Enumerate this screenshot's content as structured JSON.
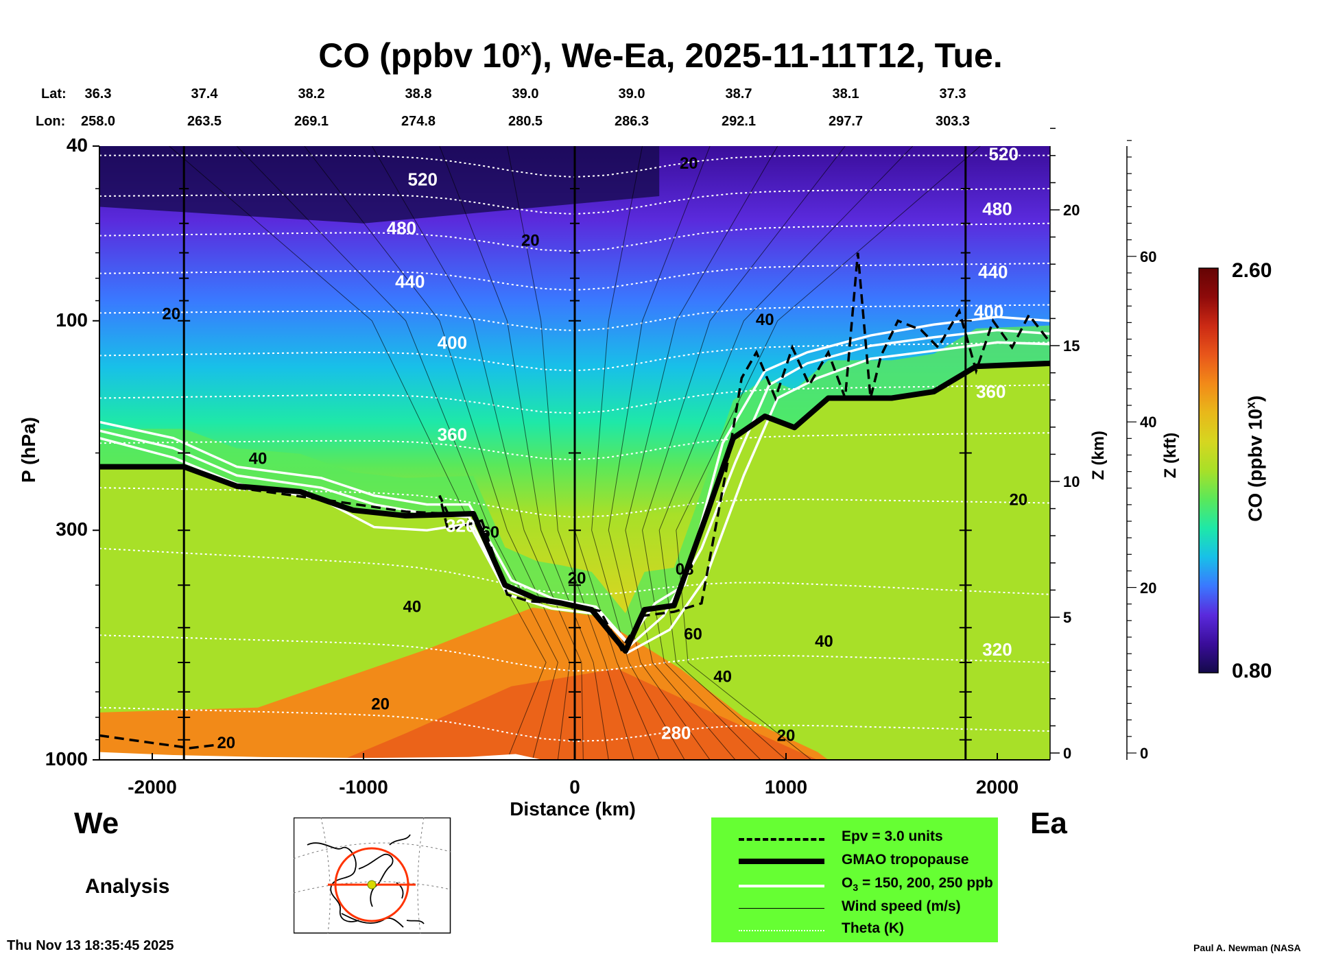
{
  "title": {
    "main": "CO (ppbv 10",
    "sup": "x",
    "rest": "), We-Ea, 2025-11-11T12, Tue."
  },
  "coords": {
    "lat_label": "Lat:",
    "lon_label": "Lon:",
    "lat": [
      "36.3",
      "37.4",
      "38.2",
      "38.8",
      "39.0",
      "39.0",
      "38.7",
      "38.1",
      "37.3"
    ],
    "lon": [
      "258.0",
      "263.5",
      "269.1",
      "274.8",
      "280.5",
      "286.3",
      "292.1",
      "297.7",
      "303.3"
    ]
  },
  "chart_data": {
    "type": "heatmap",
    "title": "CO (ppbv 10^x), We-Ea, 2025-11-11T12, Tue.",
    "xlabel": "Distance (km)",
    "ylabel": "P (hPa)",
    "xlim": [
      -2250,
      2250
    ],
    "ylim": [
      1000,
      40
    ],
    "yscale": "log",
    "x_ticks": [
      "-2000",
      "-1000",
      "0",
      "1000",
      "2000"
    ],
    "y_ticks": [
      "40",
      "100",
      "300",
      "1000"
    ],
    "z_km_ticks": [
      "0",
      "5",
      "10",
      "15",
      "20"
    ],
    "z_kft_ticks": [
      "0",
      "20",
      "40",
      "60"
    ],
    "z_km_label": "Z (km)",
    "z_kft_label": "Z (kft)",
    "colorbar": {
      "label": "CO (ppbv 10",
      "label_sup": "x",
      "label_end": ")",
      "min": "0.80",
      "max": "2.60"
    },
    "theta_labels": [
      {
        "text": "520",
        "x": -720,
        "p": 48
      },
      {
        "text": "520",
        "x": 2030,
        "p": 42
      },
      {
        "text": "480",
        "x": -820,
        "p": 62
      },
      {
        "text": "480",
        "x": 2000,
        "p": 56
      },
      {
        "text": "440",
        "x": 1980,
        "p": 78
      },
      {
        "text": "440",
        "x": -780,
        "p": 82
      },
      {
        "text": "400",
        "x": -580,
        "p": 113
      },
      {
        "text": "400",
        "x": 1960,
        "p": 96
      },
      {
        "text": "360",
        "x": -580,
        "p": 183
      },
      {
        "text": "360",
        "x": 1970,
        "p": 146
      },
      {
        "text": "320",
        "x": -540,
        "p": 295
      },
      {
        "text": "320",
        "x": 2000,
        "p": 565
      },
      {
        "text": "280",
        "x": 480,
        "p": 875
      }
    ],
    "wind_labels": [
      {
        "text": "20",
        "x": -1910,
        "p": 97
      },
      {
        "text": "20",
        "x": -210,
        "p": 66
      },
      {
        "text": "20",
        "x": 540,
        "p": 44
      },
      {
        "text": "40",
        "x": -1500,
        "p": 207
      },
      {
        "text": "60",
        "x": -400,
        "p": 305
      },
      {
        "text": "20",
        "x": 10,
        "p": 388
      },
      {
        "text": "08",
        "x": 520,
        "p": 370
      },
      {
        "text": "40",
        "x": 900,
        "p": 100
      },
      {
        "text": "40",
        "x": -770,
        "p": 450
      },
      {
        "text": "60",
        "x": 560,
        "p": 520
      },
      {
        "text": "40",
        "x": 700,
        "p": 650
      },
      {
        "text": "40",
        "x": 1180,
        "p": 540
      },
      {
        "text": "20",
        "x": 2100,
        "p": 257
      },
      {
        "text": "20",
        "x": -920,
        "p": 750
      },
      {
        "text": "20",
        "x": -1650,
        "p": 920
      },
      {
        "text": "20",
        "x": 1000,
        "p": 885
      }
    ],
    "tropopause": [
      [
        -2250,
        215
      ],
      [
        -1850,
        215
      ],
      [
        -1600,
        238
      ],
      [
        -1300,
        245
      ],
      [
        -1050,
        270
      ],
      [
        -800,
        278
      ],
      [
        -480,
        275
      ],
      [
        -330,
        400
      ],
      [
        -180,
        430
      ],
      [
        -60,
        440
      ],
      [
        80,
        455
      ],
      [
        240,
        565
      ],
      [
        330,
        455
      ],
      [
        470,
        445
      ],
      [
        620,
        280
      ],
      [
        750,
        185
      ],
      [
        900,
        165
      ],
      [
        1040,
        175
      ],
      [
        1200,
        150
      ],
      [
        1500,
        150
      ],
      [
        1700,
        145
      ],
      [
        1900,
        127
      ],
      [
        2250,
        125
      ]
    ],
    "ozone_lines": [
      [
        [
          -2250,
          170
        ],
        [
          -1900,
          185
        ],
        [
          -1600,
          215
        ],
        [
          -1200,
          228
        ],
        [
          -950,
          250
        ],
        [
          -700,
          262
        ],
        [
          -500,
          262
        ],
        [
          -300,
          390
        ],
        [
          -100,
          430
        ],
        [
          100,
          448
        ],
        [
          250,
          540
        ],
        [
          380,
          440
        ],
        [
          520,
          400
        ],
        [
          700,
          190
        ],
        [
          900,
          130
        ],
        [
          1100,
          118
        ],
        [
          1400,
          108
        ],
        [
          1700,
          102
        ],
        [
          2000,
          98
        ],
        [
          2250,
          100
        ]
      ],
      [
        [
          -2250,
          178
        ],
        [
          -1900,
          195
        ],
        [
          -1600,
          225
        ],
        [
          -1200,
          240
        ],
        [
          -950,
          262
        ],
        [
          -700,
          275
        ],
        [
          -500,
          280
        ],
        [
          -330,
          410
        ],
        [
          -120,
          440
        ],
        [
          100,
          456
        ],
        [
          260,
          550
        ],
        [
          420,
          470
        ],
        [
          600,
          330
        ],
        [
          760,
          210
        ],
        [
          920,
          140
        ],
        [
          1100,
          125
        ],
        [
          1400,
          114
        ],
        [
          1700,
          109
        ],
        [
          2000,
          105
        ],
        [
          2250,
          107
        ]
      ],
      [
        [
          -2250,
          185
        ],
        [
          -1900,
          205
        ],
        [
          -1600,
          235
        ],
        [
          -1200,
          255
        ],
        [
          -950,
          295
        ],
        [
          -700,
          300
        ],
        [
          -500,
          290
        ],
        [
          -320,
          420
        ],
        [
          -110,
          452
        ],
        [
          100,
          465
        ],
        [
          250,
          570
        ],
        [
          450,
          505
        ],
        [
          620,
          385
        ],
        [
          800,
          225
        ],
        [
          960,
          150
        ],
        [
          1150,
          135
        ],
        [
          1400,
          122
        ],
        [
          1700,
          117
        ],
        [
          2000,
          112
        ],
        [
          2250,
          113
        ]
      ]
    ],
    "epv_line": [
      [
        -2250,
        880
      ],
      [
        -2000,
        915
      ],
      [
        -1820,
        940
      ],
      [
        -1700,
        925
      ]
    ],
    "epv_line2": [
      [
        -1800,
        220
      ],
      [
        -1600,
        240
      ],
      [
        -1200,
        255
      ],
      [
        -800,
        272
      ],
      [
        -600,
        275
      ],
      [
        -640,
        250
      ],
      [
        -600,
        300
      ],
      [
        -440,
        285
      ],
      [
        -320,
        420
      ],
      [
        -220,
        435
      ],
      [
        -80,
        440
      ],
      [
        120,
        458
      ],
      [
        220,
        560
      ],
      [
        320,
        470
      ],
      [
        470,
        460
      ],
      [
        600,
        440
      ],
      [
        720,
        215
      ],
      [
        790,
        135
      ],
      [
        860,
        118
      ],
      [
        950,
        150
      ],
      [
        1030,
        115
      ],
      [
        1110,
        140
      ],
      [
        1200,
        118
      ],
      [
        1280,
        150
      ],
      [
        1340,
        70
      ],
      [
        1400,
        150
      ],
      [
        1450,
        120
      ],
      [
        1530,
        100
      ],
      [
        1640,
        105
      ],
      [
        1720,
        115
      ],
      [
        1820,
        95
      ],
      [
        1900,
        130
      ],
      [
        1980,
        100
      ],
      [
        2070,
        115
      ],
      [
        2150,
        97
      ],
      [
        2250,
        112
      ]
    ],
    "colors": {
      "stops": [
        "#140a4a",
        "#3a0d9a",
        "#5a2adc",
        "#3a78ff",
        "#18c0e8",
        "#1ee8a8",
        "#5ae85a",
        "#a8e028",
        "#d6d620",
        "#e8b81a",
        "#f28a18",
        "#e8561a",
        "#cc2a14",
        "#8e0a0a",
        "#640404"
      ],
      "legend_green": "#66ff33"
    }
  },
  "legend": {
    "items": [
      {
        "label": "Epv = 3.0 units"
      },
      {
        "label": "GMAO tropopause"
      },
      {
        "label": "O",
        "sub": "3",
        "rest": " = 150, 200, 250 ppb"
      },
      {
        "label": "Wind speed (m/s)"
      },
      {
        "label": "Theta (K)"
      }
    ]
  },
  "direction": {
    "west": "We",
    "east": "Ea"
  },
  "mode_label": "Analysis",
  "timestamp": "Thu Nov 13 18:35:45 2025",
  "credit": "Paul A. Newman (NASA"
}
